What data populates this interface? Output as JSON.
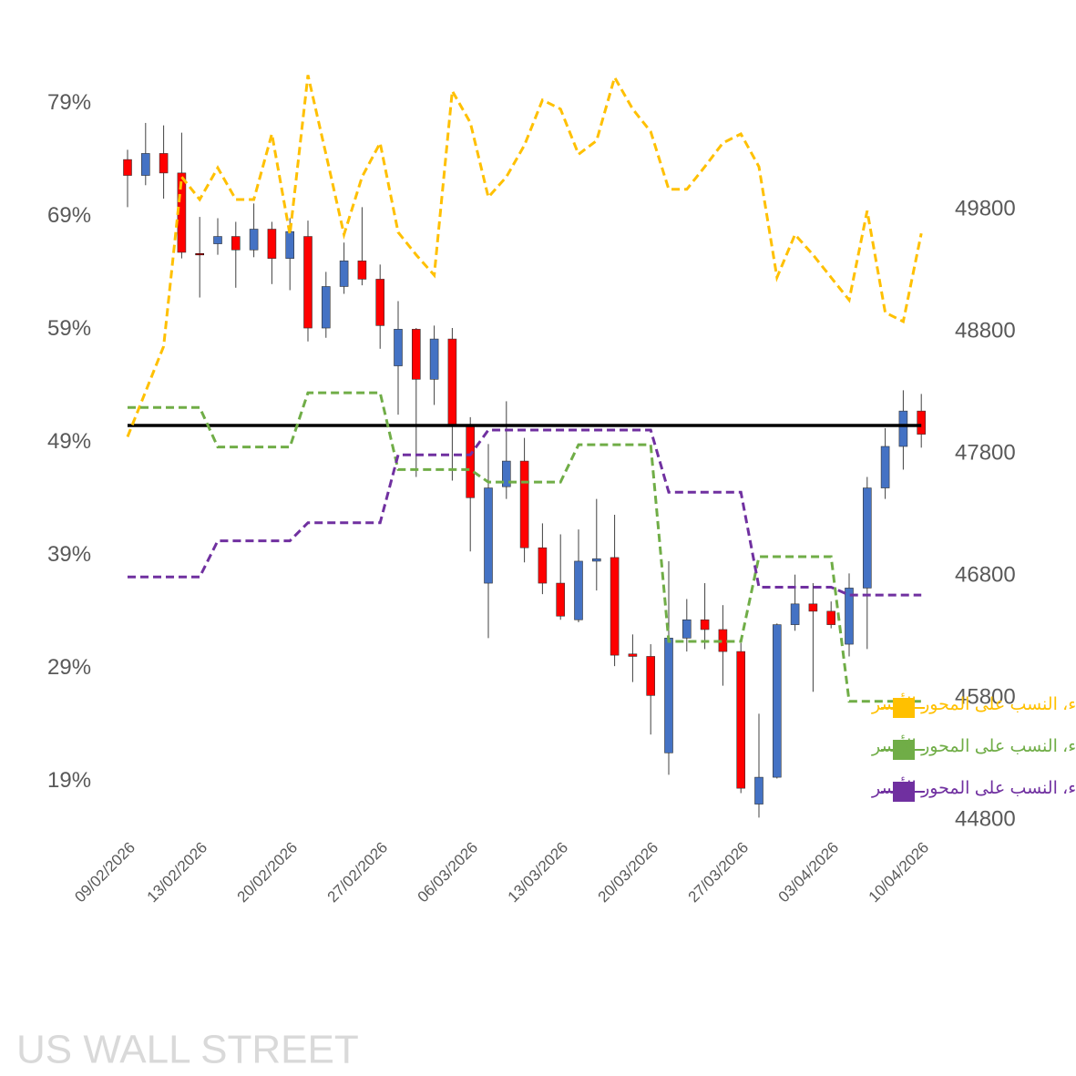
{
  "chart_data": {
    "type": "candlestick",
    "categories": [
      "09/02/2026",
      null,
      null,
      null,
      "13/02/2026",
      null,
      null,
      null,
      null,
      "20/02/2026",
      null,
      null,
      null,
      null,
      "27/02/2026",
      null,
      null,
      null,
      null,
      "06/03/2026",
      null,
      null,
      null,
      null,
      "13/03/2026",
      null,
      null,
      null,
      null,
      "20/03/2026",
      null,
      null,
      null,
      null,
      "27/03/2026",
      null,
      null,
      null,
      null,
      "03/04/2026",
      null,
      null,
      null,
      null,
      "10/04/2026"
    ],
    "candles": {
      "axis": "y2",
      "up_color": "#4472C4",
      "down_color": "#FF0000",
      "open": [
        50210,
        50080,
        50260,
        50100,
        49440,
        49520,
        49580,
        49470,
        49640,
        49400,
        49580,
        48830,
        49170,
        49380,
        49230,
        48520,
        48820,
        48410,
        48740,
        48040,
        46740,
        47530,
        47740,
        47030,
        46740,
        46440,
        46920,
        46950,
        46160,
        46140,
        45350,
        46290,
        46440,
        46360,
        46180,
        44930,
        45150,
        46400,
        46570,
        46510,
        46240,
        46700,
        47520,
        47860,
        48150
      ],
      "high": [
        50290,
        50510,
        50490,
        50430,
        49740,
        49730,
        49700,
        49850,
        49700,
        49730,
        49710,
        49290,
        49530,
        49820,
        49350,
        49050,
        48830,
        48850,
        48830,
        48100,
        47880,
        48230,
        47930,
        47230,
        47140,
        47180,
        47430,
        47300,
        46320,
        46240,
        46920,
        46610,
        46740,
        46560,
        46250,
        45670,
        46410,
        46810,
        46740,
        46590,
        46820,
        47610,
        48010,
        48320,
        48290
      ],
      "low": [
        49820,
        50000,
        49890,
        49400,
        49080,
        49430,
        49160,
        49410,
        49190,
        49140,
        48720,
        48750,
        49110,
        49180,
        48660,
        48120,
        47610,
        48200,
        47580,
        47000,
        46290,
        47430,
        46910,
        46650,
        46440,
        46420,
        46680,
        46060,
        45930,
        45500,
        45170,
        46180,
        46200,
        45900,
        45020,
        44820,
        45140,
        46350,
        45850,
        46370,
        46140,
        46200,
        47430,
        47670,
        47850
      ],
      "close": [
        50080,
        50260,
        50100,
        49450,
        49430,
        49580,
        49470,
        49640,
        49400,
        49620,
        48830,
        49170,
        49380,
        49230,
        48850,
        48820,
        48410,
        48740,
        48040,
        47440,
        47520,
        47740,
        47030,
        46740,
        46470,
        46920,
        46940,
        46150,
        46140,
        45820,
        46290,
        46440,
        46360,
        46180,
        45060,
        45150,
        46400,
        46570,
        46510,
        46400,
        46700,
        47520,
        47860,
        48150,
        47960
      ]
    },
    "series": [
      {
        "name": "توجه عملاء، نسبة الشراء، النسب على المحور الأيسر",
        "color": "#FFC000",
        "values": [
          49.5,
          53.5,
          57.5,
          72.5,
          70.5,
          73.3,
          70.5,
          70.5,
          76.3,
          67.4,
          81.5,
          74.5,
          67.4,
          72.5,
          75.5,
          67.6,
          65.6,
          63.8,
          80.1,
          77.3,
          70.7,
          72.5,
          75.3,
          79.3,
          78.5,
          74.5,
          75.7,
          81.3,
          78.5,
          76.5,
          71.4,
          71.4,
          73.4,
          75.5,
          76.3,
          73.4,
          63.6,
          67.4,
          65.6,
          63.6,
          61.6,
          69.5,
          60.5,
          59.7,
          67.5
        ]
      },
      {
        "name": "توجه المؤسسات، نسبة الشراء، النسب على المحور الأيسر",
        "color": "#70AD47",
        "values": [
          52.1,
          52.1,
          52.1,
          52.1,
          52.1,
          48.6,
          48.6,
          48.6,
          48.6,
          48.6,
          53.4,
          53.4,
          53.4,
          53.4,
          53.4,
          46.6,
          46.6,
          46.6,
          46.6,
          46.6,
          45.5,
          45.5,
          45.5,
          45.5,
          45.5,
          48.8,
          48.8,
          48.8,
          48.8,
          48.8,
          31.4,
          31.4,
          31.4,
          31.4,
          31.4,
          38.9,
          38.9,
          38.9,
          38.9,
          38.9,
          26.1,
          26.1,
          26.1,
          26.1,
          26.1
        ]
      },
      {
        "name": "توجه صناديق الرفع المالي، نسبة الشراء، النسب على المحور الأيسر",
        "color": "#7030A0",
        "values": [
          37.1,
          37.1,
          37.1,
          37.1,
          37.1,
          40.3,
          40.3,
          40.3,
          40.3,
          40.3,
          41.9,
          41.9,
          41.9,
          41.9,
          41.9,
          47.9,
          47.9,
          47.9,
          47.9,
          47.9,
          50.1,
          50.1,
          50.1,
          50.1,
          50.1,
          50.1,
          50.1,
          50.1,
          50.1,
          50.1,
          44.6,
          44.6,
          44.6,
          44.6,
          44.6,
          36.2,
          36.2,
          36.2,
          36.2,
          36.2,
          35.5,
          35.5,
          35.5,
          35.5,
          35.5
        ]
      }
    ],
    "reference_line": {
      "value": 50.5,
      "color": "#000000"
    },
    "ylim": [
      15.6,
      81.7
    ],
    "yticks": [
      {
        "value": 19,
        "label": "19%"
      },
      {
        "value": 29,
        "label": "29%"
      },
      {
        "value": 39,
        "label": "39%"
      },
      {
        "value": 49,
        "label": "49%"
      },
      {
        "value": 59,
        "label": "59%"
      },
      {
        "value": 69,
        "label": "69%"
      },
      {
        "value": 79,
        "label": "79%"
      }
    ],
    "y2lim": [
      44800,
      50920
    ],
    "y2ticks": [
      44800,
      45800,
      46800,
      47800,
      48800,
      49800
    ],
    "legend": "bottom-right",
    "watermark": "US WALL STREET"
  }
}
